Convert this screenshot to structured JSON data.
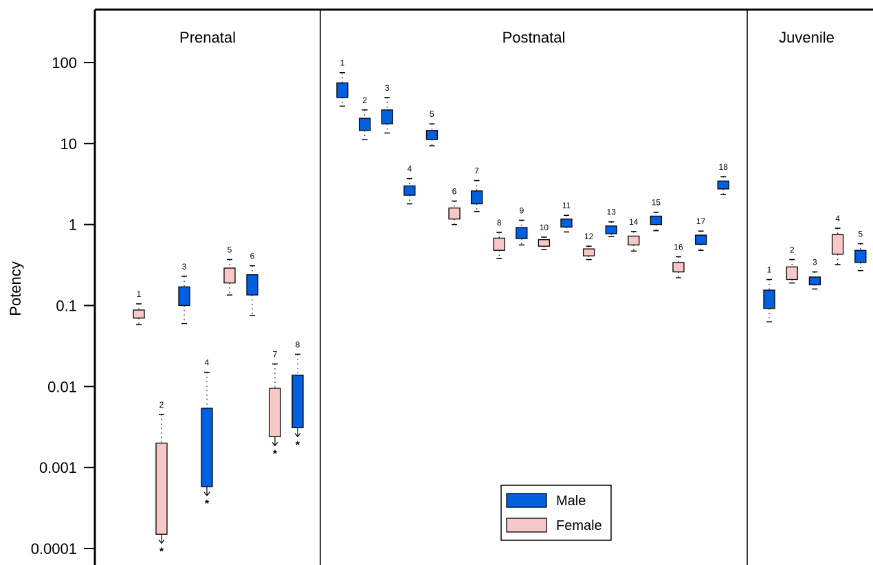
{
  "chart_data": {
    "type": "box",
    "ylabel": "Potency",
    "yscale": "log",
    "ylim": [
      0.0001,
      400
    ],
    "yticks": [
      {
        "value": 100,
        "label": "100"
      },
      {
        "value": 10,
        "label": "10"
      },
      {
        "value": 1,
        "label": "1"
      },
      {
        "value": 0.1,
        "label": "0.1"
      },
      {
        "value": 0.01,
        "label": "0.01"
      },
      {
        "value": 0.001,
        "label": "0.001"
      },
      {
        "value": 0.0001,
        "label": "0.0001"
      }
    ],
    "colors": {
      "Male": "#0060e0",
      "Female": "#f8c8c8",
      "outline": "#000000"
    },
    "legend": {
      "position": "bottom-center of Postnatal panel",
      "entries": [
        {
          "label": "Male",
          "sex": "Male"
        },
        {
          "label": "Female",
          "sex": "Female"
        }
      ]
    },
    "panels": [
      {
        "title": "Prenatal",
        "groups": [
          {
            "label": "1",
            "sex": "Female",
            "low": 0.07,
            "high": 0.088,
            "wlow": 0.058,
            "whigh": 0.105,
            "censored": false
          },
          {
            "label": "2",
            "sex": "Female",
            "low": 0.00015,
            "high": 0.002,
            "wlow": null,
            "whigh": 0.0045,
            "censored": true
          },
          {
            "label": "3",
            "sex": "Male",
            "low": 0.1,
            "high": 0.17,
            "wlow": 0.06,
            "whigh": 0.23,
            "censored": false
          },
          {
            "label": "4",
            "sex": "Male",
            "low": 0.00058,
            "high": 0.0054,
            "wlow": null,
            "whigh": 0.015,
            "censored": true
          },
          {
            "label": "5",
            "sex": "Female",
            "low": 0.19,
            "high": 0.29,
            "wlow": 0.135,
            "whigh": 0.37,
            "censored": false
          },
          {
            "label": "6",
            "sex": "Male",
            "low": 0.135,
            "high": 0.24,
            "wlow": 0.075,
            "whigh": 0.31,
            "censored": false
          },
          {
            "label": "7",
            "sex": "Female",
            "low": 0.0024,
            "high": 0.0095,
            "wlow": null,
            "whigh": 0.019,
            "censored": true
          },
          {
            "label": "8",
            "sex": "Male",
            "low": 0.0031,
            "high": 0.0138,
            "wlow": null,
            "whigh": 0.025,
            "censored": true
          }
        ]
      },
      {
        "title": "Postnatal",
        "groups": [
          {
            "label": "1",
            "sex": "Male",
            "low": 37,
            "high": 56,
            "wlow": 29,
            "whigh": 75,
            "censored": false
          },
          {
            "label": "2",
            "sex": "Male",
            "low": 14.5,
            "high": 20.5,
            "wlow": 11.2,
            "whigh": 26,
            "censored": false
          },
          {
            "label": "3",
            "sex": "Male",
            "low": 17.5,
            "high": 26,
            "wlow": 13.5,
            "whigh": 37,
            "censored": false
          },
          {
            "label": "4",
            "sex": "Male",
            "low": 2.3,
            "high": 3.0,
            "wlow": 1.8,
            "whigh": 3.7,
            "censored": false
          },
          {
            "label": "5",
            "sex": "Male",
            "low": 11.2,
            "high": 14.5,
            "wlow": 9.4,
            "whigh": 17.5,
            "censored": false
          },
          {
            "label": "6",
            "sex": "Female",
            "low": 1.17,
            "high": 1.6,
            "wlow": 1.0,
            "whigh": 1.95,
            "censored": false
          },
          {
            "label": "7",
            "sex": "Male",
            "low": 1.8,
            "high": 2.6,
            "wlow": 1.45,
            "whigh": 3.5,
            "censored": false
          },
          {
            "label": "8",
            "sex": "Female",
            "low": 0.48,
            "high": 0.68,
            "wlow": 0.38,
            "whigh": 0.8,
            "censored": false
          },
          {
            "label": "9",
            "sex": "Male",
            "low": 0.67,
            "high": 0.92,
            "wlow": 0.56,
            "whigh": 1.13,
            "censored": false
          },
          {
            "label": "10",
            "sex": "Female",
            "low": 0.54,
            "high": 0.65,
            "wlow": 0.49,
            "whigh": 0.7,
            "censored": false
          },
          {
            "label": "11",
            "sex": "Male",
            "low": 0.93,
            "high": 1.17,
            "wlow": 0.81,
            "whigh": 1.3,
            "censored": false
          },
          {
            "label": "12",
            "sex": "Female",
            "low": 0.41,
            "high": 0.5,
            "wlow": 0.37,
            "whigh": 0.54,
            "censored": false
          },
          {
            "label": "13",
            "sex": "Male",
            "low": 0.77,
            "high": 0.96,
            "wlow": 0.71,
            "whigh": 1.08,
            "censored": false
          },
          {
            "label": "14",
            "sex": "Female",
            "low": 0.56,
            "high": 0.72,
            "wlow": 0.47,
            "whigh": 0.82,
            "censored": false
          },
          {
            "label": "15",
            "sex": "Male",
            "low": 1.0,
            "high": 1.27,
            "wlow": 0.84,
            "whigh": 1.42,
            "censored": false
          },
          {
            "label": "16",
            "sex": "Female",
            "low": 0.26,
            "high": 0.34,
            "wlow": 0.22,
            "whigh": 0.4,
            "censored": false
          },
          {
            "label": "17",
            "sex": "Male",
            "low": 0.57,
            "high": 0.74,
            "wlow": 0.48,
            "whigh": 0.83,
            "censored": false
          },
          {
            "label": "18",
            "sex": "Male",
            "low": 2.75,
            "high": 3.45,
            "wlow": 2.35,
            "whigh": 3.9,
            "censored": false
          }
        ]
      },
      {
        "title": "Juvenile",
        "groups": [
          {
            "label": "1",
            "sex": "Male",
            "low": 0.092,
            "high": 0.155,
            "wlow": 0.063,
            "whigh": 0.21,
            "censored": false
          },
          {
            "label": "2",
            "sex": "Female",
            "low": 0.21,
            "high": 0.3,
            "wlow": 0.19,
            "whigh": 0.37,
            "censored": false
          },
          {
            "label": "3",
            "sex": "Male",
            "low": 0.18,
            "high": 0.225,
            "wlow": 0.16,
            "whigh": 0.26,
            "censored": false
          },
          {
            "label": "4",
            "sex": "Female",
            "low": 0.43,
            "high": 0.75,
            "wlow": 0.32,
            "whigh": 0.9,
            "censored": false
          },
          {
            "label": "5",
            "sex": "Male",
            "low": 0.34,
            "high": 0.48,
            "wlow": 0.27,
            "whigh": 0.58,
            "censored": false
          }
        ]
      }
    ],
    "censor_marker": "*"
  }
}
